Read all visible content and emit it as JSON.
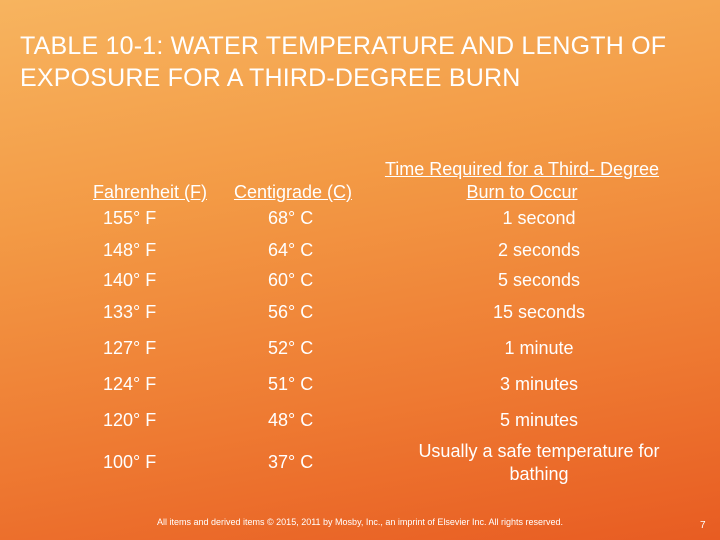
{
  "title": "TABLE 10-1: WATER TEMPERATURE AND LENGTH OF EXPOSURE FOR A THIRD-DEGREE BURN",
  "table": {
    "header": [
      "Fahrenheit (F)",
      "Centigrade (C)",
      "Time Required for a Third- Degree Burn to Occur"
    ],
    "rows": [
      [
        "155° F",
        "68° C",
        "1 second"
      ],
      [
        "148° F",
        "64° C",
        "2 seconds"
      ],
      [
        "140° F",
        "60° C",
        "5 seconds"
      ],
      [
        "133° F",
        "56° C",
        "15 seconds"
      ],
      [
        "127° F",
        "52° C",
        "1 minute"
      ],
      [
        "124° F",
        "51° C",
        "3 minutes"
      ],
      [
        "120° F",
        "48° C",
        "5 minutes"
      ],
      [
        "100° F",
        "37° C",
        "Usually a safe temperature for bathing"
      ]
    ]
  },
  "footer": "All items and derived items © 2015, 2011 by Mosby, Inc., an imprint of Elsevier Inc. All rights reserved.",
  "page_number": "7"
}
